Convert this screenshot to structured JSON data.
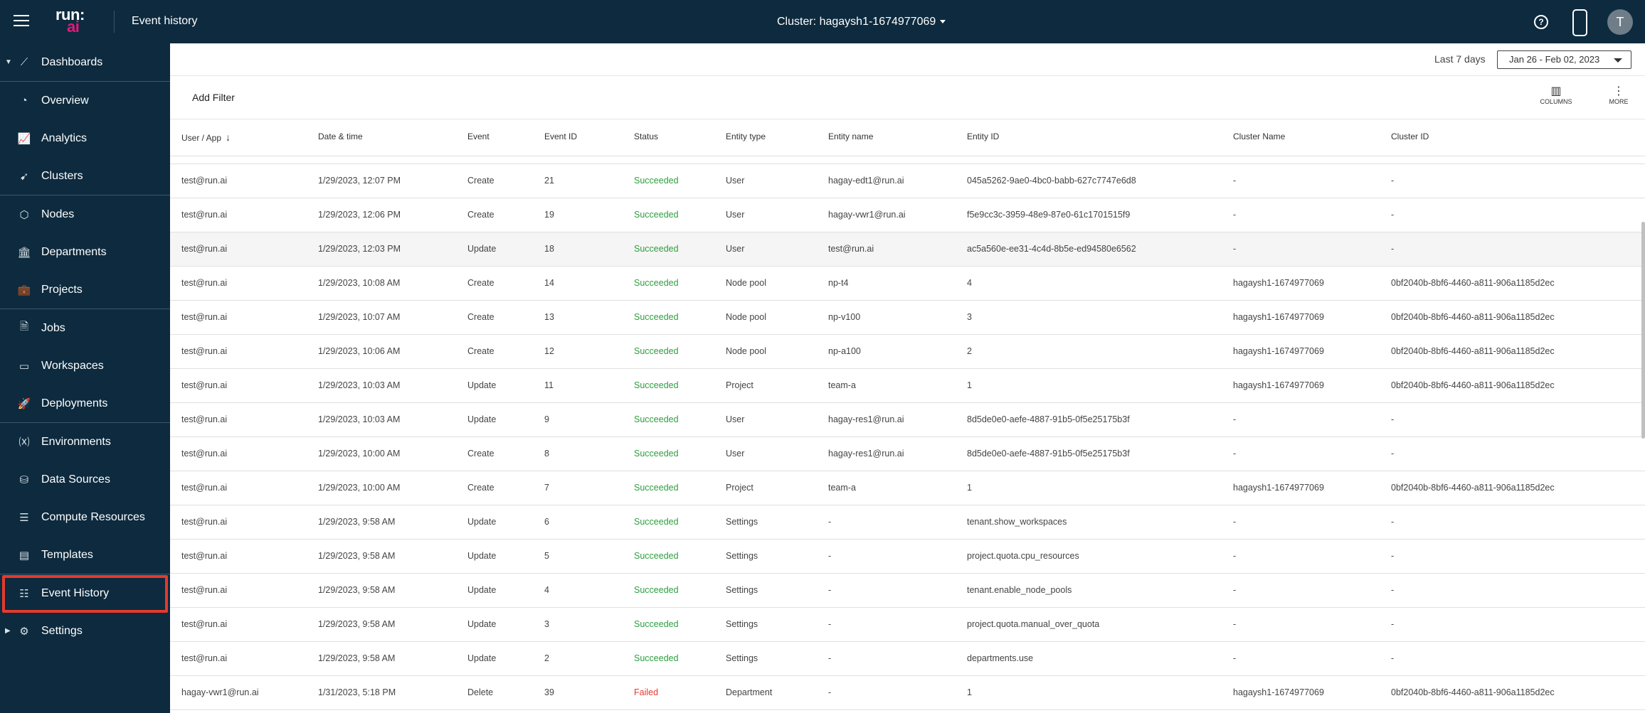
{
  "header": {
    "logo_line1": "run:",
    "logo_line2": "ai",
    "page_title": "Event history",
    "cluster": "Cluster: hagaysh1-1674977069",
    "help_glyph": "?",
    "avatar_initial": "T"
  },
  "sidebar": {
    "items": [
      {
        "label": "Dashboards",
        "icon": "dashboards-icon",
        "glyph": "⟋",
        "expandable": true
      },
      {
        "label": "Overview",
        "icon": "overview-icon",
        "glyph": "◔"
      },
      {
        "label": "Analytics",
        "icon": "analytics-icon",
        "glyph": "📈"
      },
      {
        "label": "Clusters",
        "icon": "clusters-icon",
        "glyph": "➹"
      },
      {
        "label": "Nodes",
        "icon": "nodes-icon",
        "glyph": "⬡"
      },
      {
        "label": "Departments",
        "icon": "departments-icon",
        "glyph": "🏛"
      },
      {
        "label": "Projects",
        "icon": "projects-icon",
        "glyph": "💼"
      },
      {
        "label": "Jobs",
        "icon": "jobs-icon",
        "glyph": "🗎"
      },
      {
        "label": "Workspaces",
        "icon": "workspaces-icon",
        "glyph": "▭"
      },
      {
        "label": "Deployments",
        "icon": "deployments-icon",
        "glyph": "🚀"
      },
      {
        "label": "Environments",
        "icon": "environments-icon",
        "glyph": "⒳"
      },
      {
        "label": "Data Sources",
        "icon": "data-sources-icon",
        "glyph": "⛁"
      },
      {
        "label": "Compute Resources",
        "icon": "compute-resources-icon",
        "glyph": "☰"
      },
      {
        "label": "Templates",
        "icon": "templates-icon",
        "glyph": "▤"
      },
      {
        "label": "Event History",
        "icon": "event-history-icon",
        "glyph": "☷",
        "active": true
      },
      {
        "label": "Settings",
        "icon": "settings-icon",
        "glyph": "⚙",
        "expandable": true
      }
    ]
  },
  "range": {
    "label": "Last 7 days",
    "value": "Jan 26 - Feb 02, 2023"
  },
  "toolbar": {
    "add_filter": "Add Filter",
    "columns_label": "COLUMNS",
    "more_label": "MORE"
  },
  "table": {
    "columns": [
      "User / App",
      "Date & time",
      "Event",
      "Event ID",
      "Status",
      "Entity type",
      "Entity name",
      "Entity ID",
      "Cluster Name",
      "Cluster ID"
    ],
    "sort_indicator": "↓",
    "rows": [
      [
        "test@run.ai",
        "1/29/2023, 12:07 PM",
        "Create",
        "21",
        "Succeeded",
        "User",
        "hagay-edt1@run.ai",
        "045a5262-9ae0-4bc0-babb-627c7747e6d8",
        "-",
        "-"
      ],
      [
        "test@run.ai",
        "1/29/2023, 12:06 PM",
        "Create",
        "19",
        "Succeeded",
        "User",
        "hagay-vwr1@run.ai",
        "f5e9cc3c-3959-48e9-87e0-61c1701515f9",
        "-",
        "-"
      ],
      [
        "test@run.ai",
        "1/29/2023, 12:03 PM",
        "Update",
        "18",
        "Succeeded",
        "User",
        "test@run.ai",
        "ac5a560e-ee31-4c4d-8b5e-ed94580e6562",
        "-",
        "-"
      ],
      [
        "test@run.ai",
        "1/29/2023, 10:08 AM",
        "Create",
        "14",
        "Succeeded",
        "Node pool",
        "np-t4",
        "4",
        "hagaysh1-1674977069",
        "0bf2040b-8bf6-4460-a811-906a1185d2ec"
      ],
      [
        "test@run.ai",
        "1/29/2023, 10:07 AM",
        "Create",
        "13",
        "Succeeded",
        "Node pool",
        "np-v100",
        "3",
        "hagaysh1-1674977069",
        "0bf2040b-8bf6-4460-a811-906a1185d2ec"
      ],
      [
        "test@run.ai",
        "1/29/2023, 10:06 AM",
        "Create",
        "12",
        "Succeeded",
        "Node pool",
        "np-a100",
        "2",
        "hagaysh1-1674977069",
        "0bf2040b-8bf6-4460-a811-906a1185d2ec"
      ],
      [
        "test@run.ai",
        "1/29/2023, 10:03 AM",
        "Update",
        "11",
        "Succeeded",
        "Project",
        "team-a",
        "1",
        "hagaysh1-1674977069",
        "0bf2040b-8bf6-4460-a811-906a1185d2ec"
      ],
      [
        "test@run.ai",
        "1/29/2023, 10:03 AM",
        "Update",
        "9",
        "Succeeded",
        "User",
        "hagay-res1@run.ai",
        "8d5de0e0-aefe-4887-91b5-0f5e25175b3f",
        "-",
        "-"
      ],
      [
        "test@run.ai",
        "1/29/2023, 10:00 AM",
        "Create",
        "8",
        "Succeeded",
        "User",
        "hagay-res1@run.ai",
        "8d5de0e0-aefe-4887-91b5-0f5e25175b3f",
        "-",
        "-"
      ],
      [
        "test@run.ai",
        "1/29/2023, 10:00 AM",
        "Create",
        "7",
        "Succeeded",
        "Project",
        "team-a",
        "1",
        "hagaysh1-1674977069",
        "0bf2040b-8bf6-4460-a811-906a1185d2ec"
      ],
      [
        "test@run.ai",
        "1/29/2023, 9:58 AM",
        "Update",
        "6",
        "Succeeded",
        "Settings",
        "-",
        "tenant.show_workspaces",
        "-",
        "-"
      ],
      [
        "test@run.ai",
        "1/29/2023, 9:58 AM",
        "Update",
        "5",
        "Succeeded",
        "Settings",
        "-",
        "project.quota.cpu_resources",
        "-",
        "-"
      ],
      [
        "test@run.ai",
        "1/29/2023, 9:58 AM",
        "Update",
        "4",
        "Succeeded",
        "Settings",
        "-",
        "tenant.enable_node_pools",
        "-",
        "-"
      ],
      [
        "test@run.ai",
        "1/29/2023, 9:58 AM",
        "Update",
        "3",
        "Succeeded",
        "Settings",
        "-",
        "project.quota.manual_over_quota",
        "-",
        "-"
      ],
      [
        "test@run.ai",
        "1/29/2023, 9:58 AM",
        "Update",
        "2",
        "Succeeded",
        "Settings",
        "-",
        "departments.use",
        "-",
        "-"
      ],
      [
        "hagay-vwr1@run.ai",
        "1/31/2023, 5:18 PM",
        "Delete",
        "39",
        "Failed",
        "Department",
        "-",
        "1",
        "hagaysh1-1674977069",
        "0bf2040b-8bf6-4460-a811-906a1185d2ec"
      ]
    ]
  },
  "colors": {
    "nav_bg": "#0d2a3e",
    "brand_pink": "#e4187a",
    "success": "#2e9e3f",
    "failed": "#e53a2c",
    "active_highlight": "#e53a2c"
  }
}
